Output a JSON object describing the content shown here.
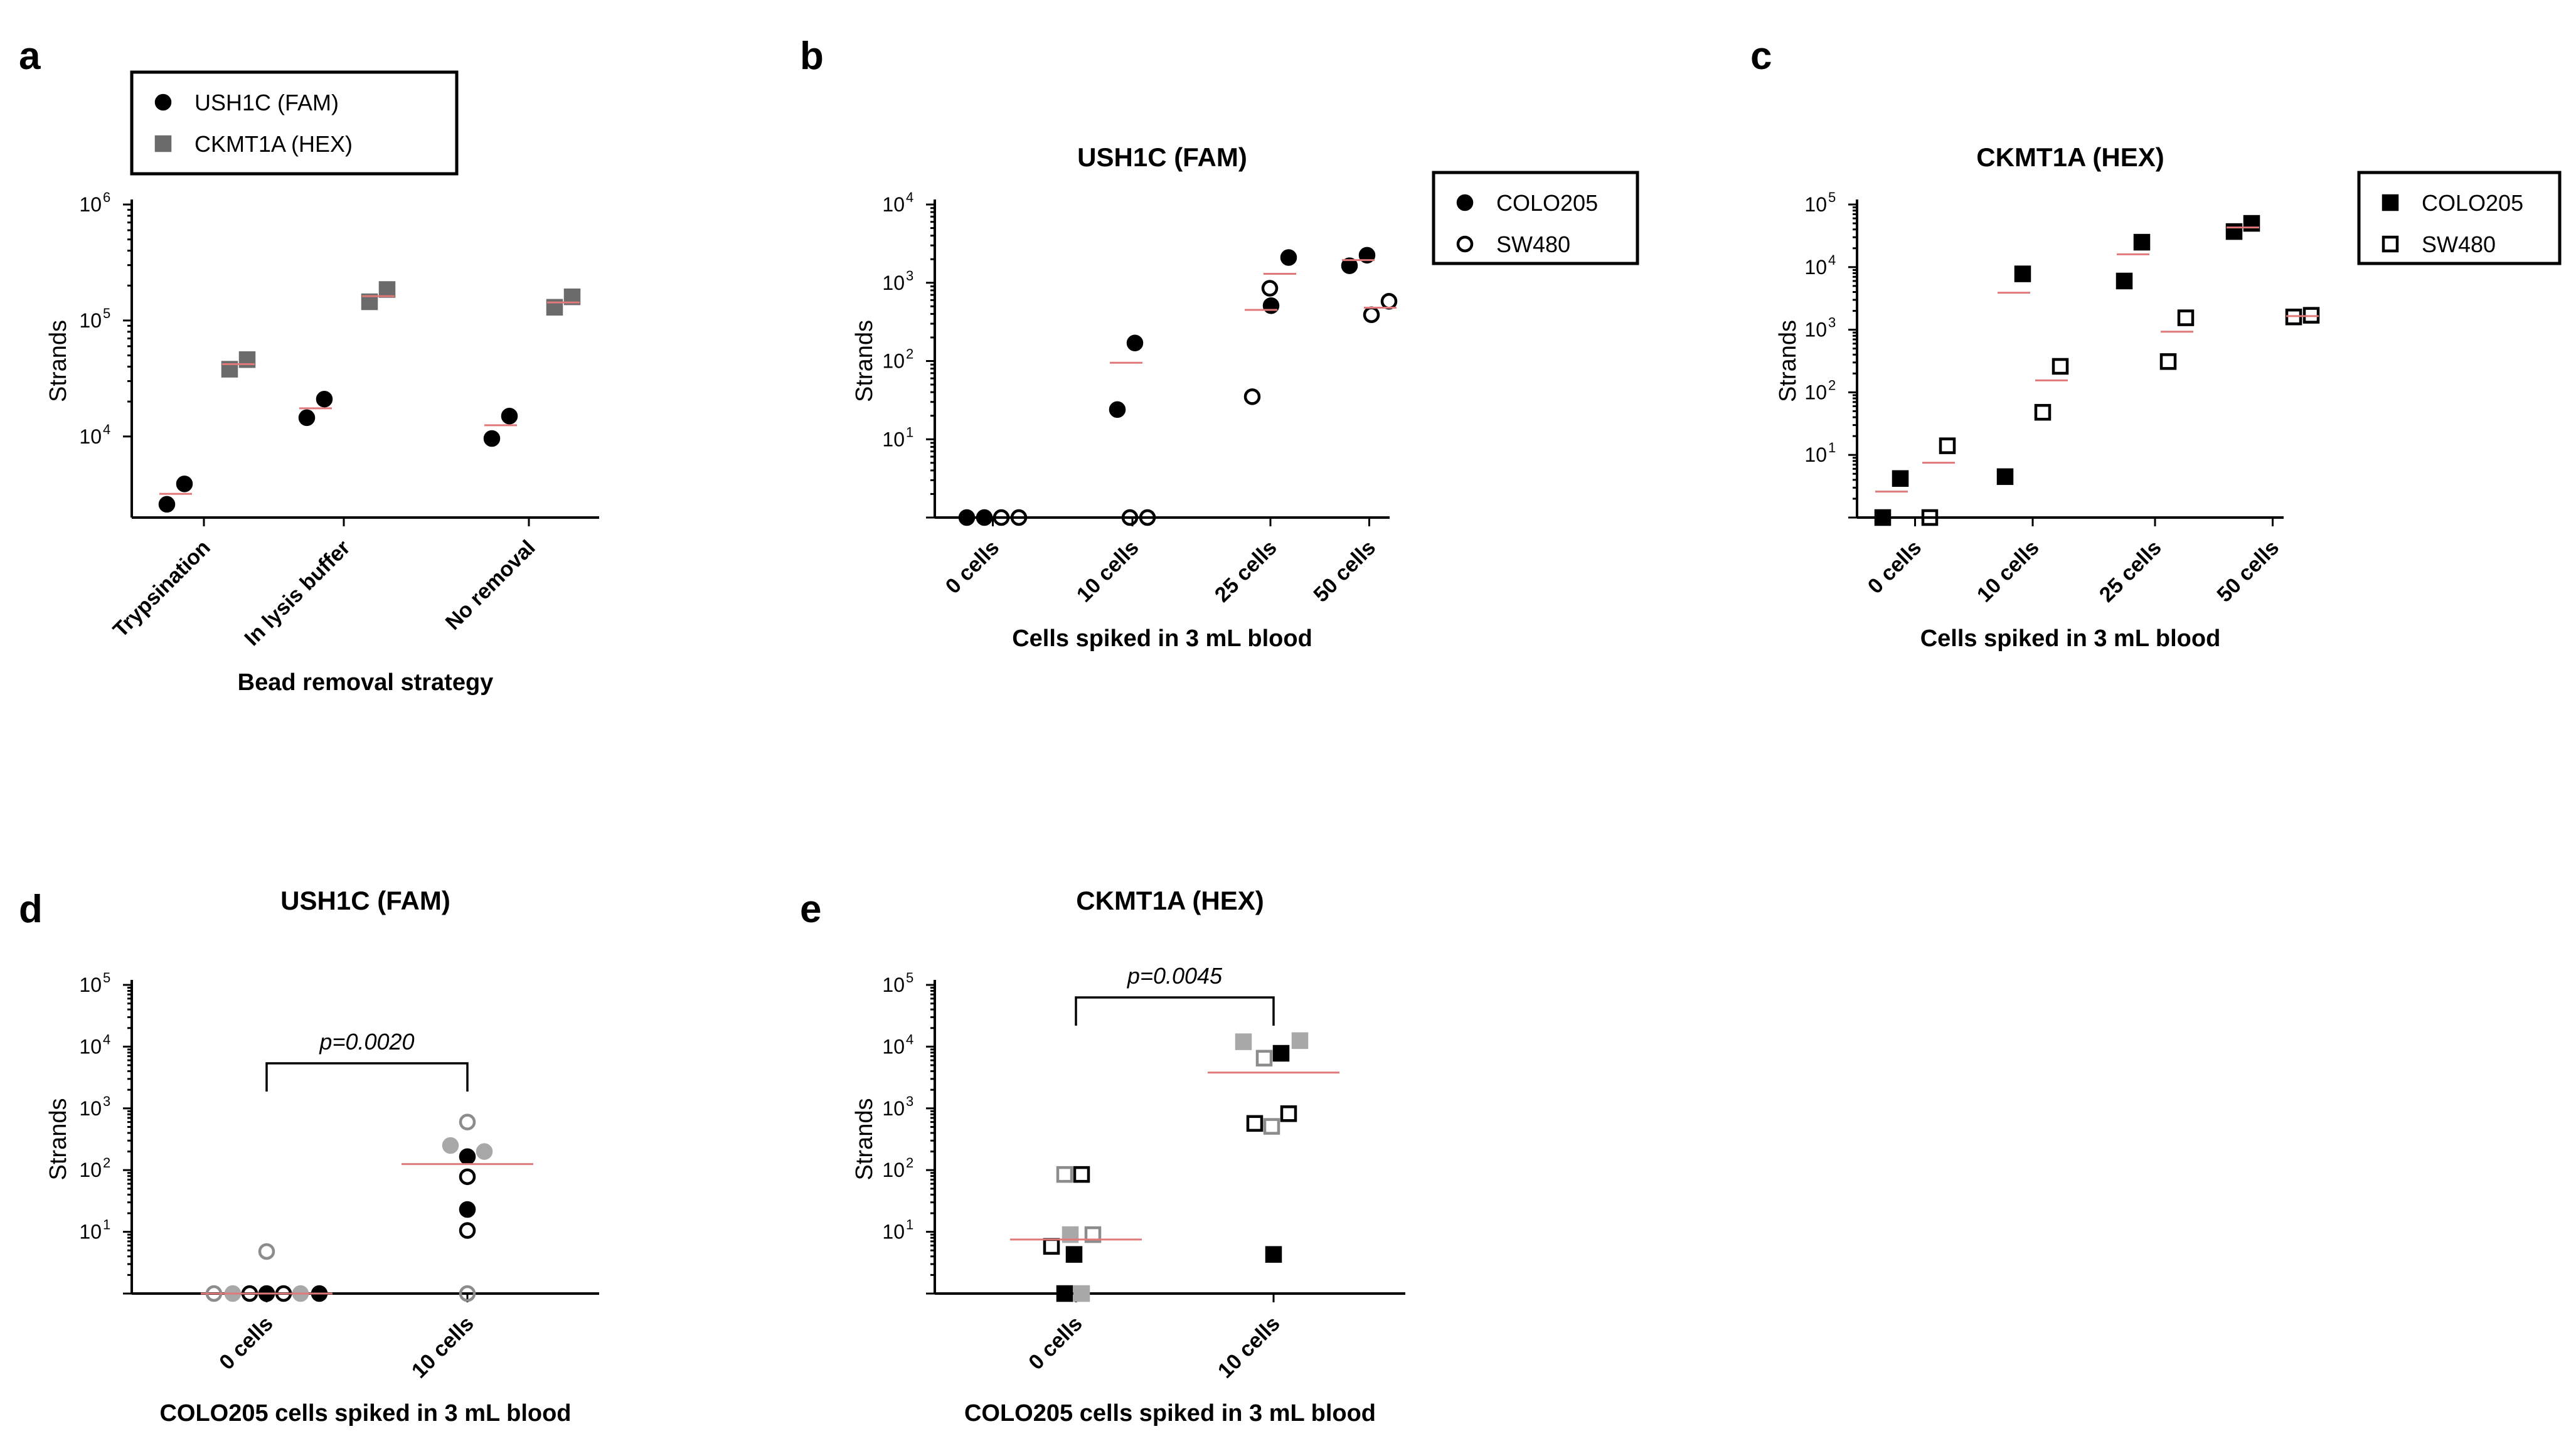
{
  "chart_data": [
    {
      "panel": "a",
      "type": "scatter",
      "title": "",
      "xlabel": "Bead removal strategy",
      "ylabel": "Strands",
      "yscale": "log",
      "ylim": [
        2000,
        1000000
      ],
      "yticks": [
        {
          "base": "10",
          "exp": "4"
        },
        {
          "base": "10",
          "exp": "5"
        },
        {
          "base": "10",
          "exp": "6"
        }
      ],
      "categories": [
        "Trypsination",
        "In lysis buffer",
        "No removal"
      ],
      "legend": {
        "position": "top",
        "entries": [
          "USH1C (FAM)",
          "CKMT1A (HEX)"
        ]
      },
      "series": [
        {
          "name": "USH1C (FAM)",
          "marker": "circle",
          "fill": "#000000",
          "values": [
            [
              2600,
              3900
            ],
            [
              14500,
              21000
            ],
            [
              9600,
              15000
            ]
          ],
          "medians": [
            3200,
            17500,
            12500
          ]
        },
        {
          "name": "CKMT1A (HEX)",
          "marker": "square",
          "fill": "#6b6b6b",
          "values": [
            [
              38000,
              46000
            ],
            [
              145000,
              185000
            ],
            [
              130000,
              160000
            ]
          ],
          "medians": [
            42000,
            162000,
            143000
          ]
        }
      ]
    },
    {
      "panel": "b",
      "type": "scatter",
      "title": "USH1C (FAM)",
      "xlabel": "Cells spiked in 3 mL blood",
      "ylabel": "Strands",
      "yscale": "log",
      "ylim": [
        1,
        10000
      ],
      "yticks": [
        {
          "base": "10",
          "exp": "1"
        },
        {
          "base": "10",
          "exp": "2"
        },
        {
          "base": "10",
          "exp": "3"
        },
        {
          "base": "10",
          "exp": "4"
        }
      ],
      "categories": [
        "0 cells",
        "10 cells",
        "25 cells",
        "50 cells"
      ],
      "legend": {
        "position": "right",
        "entries": [
          "COLO205",
          "SW480"
        ]
      },
      "series": [
        {
          "name": "COLO205",
          "marker": "circle",
          "fill": "#000000",
          "values": [
            [
              1,
              1
            ],
            [
              24,
              170
            ],
            [
              510,
              2100
            ],
            [
              1650,
              2250
            ]
          ],
          "medians": [
            null,
            95,
            1300,
            1950
          ]
        },
        {
          "name": "SW480",
          "marker": "circle",
          "fill": "none",
          "values": [
            [
              1,
              1
            ],
            [
              1,
              1
            ],
            [
              35,
              850
            ],
            [
              390,
              580
            ]
          ],
          "medians": [
            null,
            null,
            450,
            480
          ]
        }
      ]
    },
    {
      "panel": "c",
      "type": "scatter",
      "title": "CKMT1A (HEX)",
      "xlabel": "Cells spiked in 3 mL blood",
      "ylabel": "Strands",
      "yscale": "log",
      "ylim": [
        1,
        100000
      ],
      "yticks": [
        {
          "base": "10",
          "exp": "1"
        },
        {
          "base": "10",
          "exp": "2"
        },
        {
          "base": "10",
          "exp": "3"
        },
        {
          "base": "10",
          "exp": "4"
        },
        {
          "base": "10",
          "exp": "5"
        }
      ],
      "categories": [
        "0 cells",
        "10 cells",
        "25 cells",
        "50 cells"
      ],
      "legend": {
        "position": "right",
        "entries": [
          "COLO205",
          "SW480"
        ]
      },
      "series": [
        {
          "name": "COLO205",
          "marker": "square",
          "fill": "#000000",
          "values": [
            [
              1,
              4.2
            ],
            [
              4.5,
              7800
            ],
            [
              6000,
              25000
            ],
            [
              37000,
              50000
            ]
          ],
          "medians": [
            2.6,
            3900,
            16000,
            43000
          ]
        },
        {
          "name": "SW480",
          "marker": "square",
          "fill": "none",
          "values": [
            [
              1,
              14
            ],
            [
              48,
              260
            ],
            [
              310,
              1550
            ],
            [
              1600,
              1700
            ]
          ],
          "medians": [
            7.5,
            155,
            930,
            1650
          ]
        }
      ]
    },
    {
      "panel": "d",
      "type": "scatter",
      "title": "USH1C (FAM)",
      "xlabel": "COLO205 cells spiked in 3 mL blood",
      "ylabel": "Strands",
      "yscale": "log",
      "ylim": [
        1,
        100000
      ],
      "yticks": [
        {
          "base": "10",
          "exp": "1"
        },
        {
          "base": "10",
          "exp": "2"
        },
        {
          "base": "10",
          "exp": "3"
        },
        {
          "base": "10",
          "exp": "4"
        },
        {
          "base": "10",
          "exp": "5"
        }
      ],
      "categories": [
        "0 cells",
        "10 cells"
      ],
      "annotation": "p=0.0020",
      "medians": [
        1,
        125
      ],
      "points": [
        {
          "cat": 0,
          "offset": -0.28,
          "y": 1,
          "marker": "circle",
          "fill": "none",
          "stroke": "#8c8c8c"
        },
        {
          "cat": 0,
          "offset": -0.18,
          "y": 1,
          "marker": "circle",
          "fill": "#a8a8a8",
          "stroke": "#a8a8a8"
        },
        {
          "cat": 0,
          "offset": -0.09,
          "y": 1,
          "marker": "circle",
          "fill": "none",
          "stroke": "#000000"
        },
        {
          "cat": 0,
          "offset": 0.0,
          "y": 1,
          "marker": "circle",
          "fill": "#000000",
          "stroke": "#000000"
        },
        {
          "cat": 0,
          "offset": 0.09,
          "y": 1,
          "marker": "circle",
          "fill": "none",
          "stroke": "#000000"
        },
        {
          "cat": 0,
          "offset": 0.18,
          "y": 1,
          "marker": "circle",
          "fill": "#a8a8a8",
          "stroke": "#a8a8a8"
        },
        {
          "cat": 0,
          "offset": 0.28,
          "y": 1,
          "marker": "circle",
          "fill": "#000000",
          "stroke": "#000000"
        },
        {
          "cat": 0,
          "offset": 0.0,
          "y": 4.8,
          "marker": "circle",
          "fill": "none",
          "stroke": "#8c8c8c"
        },
        {
          "cat": 1,
          "offset": 0.0,
          "y": 600,
          "marker": "circle",
          "fill": "none",
          "stroke": "#8c8c8c"
        },
        {
          "cat": 1,
          "offset": -0.09,
          "y": 250,
          "marker": "circle",
          "fill": "#a8a8a8",
          "stroke": "#a8a8a8"
        },
        {
          "cat": 1,
          "offset": 0.09,
          "y": 200,
          "marker": "circle",
          "fill": "#a8a8a8",
          "stroke": "#a8a8a8"
        },
        {
          "cat": 1,
          "offset": 0.0,
          "y": 165,
          "marker": "circle",
          "fill": "#000000",
          "stroke": "#000000"
        },
        {
          "cat": 1,
          "offset": 0.0,
          "y": 78,
          "marker": "circle",
          "fill": "none",
          "stroke": "#000000"
        },
        {
          "cat": 1,
          "offset": 0.0,
          "y": 23,
          "marker": "circle",
          "fill": "#000000",
          "stroke": "#000000"
        },
        {
          "cat": 1,
          "offset": 0.0,
          "y": 10.5,
          "marker": "circle",
          "fill": "none",
          "stroke": "#000000"
        },
        {
          "cat": 1,
          "offset": 0.0,
          "y": 1,
          "marker": "circle",
          "fill": "none",
          "stroke": "#8c8c8c"
        }
      ]
    },
    {
      "panel": "e",
      "type": "scatter",
      "title": "CKMT1A (HEX)",
      "xlabel": "COLO205 cells spiked in 3 mL blood",
      "ylabel": "Strands",
      "yscale": "log",
      "ylim": [
        1,
        100000
      ],
      "yticks": [
        {
          "base": "10",
          "exp": "1"
        },
        {
          "base": "10",
          "exp": "2"
        },
        {
          "base": "10",
          "exp": "3"
        },
        {
          "base": "10",
          "exp": "4"
        },
        {
          "base": "10",
          "exp": "5"
        }
      ],
      "categories": [
        "0 cells",
        "10 cells"
      ],
      "annotation": "p=0.0045",
      "medians": [
        7.5,
        3800
      ],
      "points": [
        {
          "cat": 0,
          "offset": -0.06,
          "y": 85,
          "marker": "square",
          "fill": "none",
          "stroke": "#8c8c8c"
        },
        {
          "cat": 0,
          "offset": 0.03,
          "y": 85,
          "marker": "square",
          "fill": "none",
          "stroke": "#000000"
        },
        {
          "cat": 0,
          "offset": -0.03,
          "y": 9,
          "marker": "square",
          "fill": "#a8a8a8",
          "stroke": "#a8a8a8"
        },
        {
          "cat": 0,
          "offset": 0.09,
          "y": 9,
          "marker": "square",
          "fill": "none",
          "stroke": "#8c8c8c"
        },
        {
          "cat": 0,
          "offset": -0.13,
          "y": 5.8,
          "marker": "square",
          "fill": "none",
          "stroke": "#000000"
        },
        {
          "cat": 0,
          "offset": -0.01,
          "y": 4.3,
          "marker": "square",
          "fill": "#000000",
          "stroke": "#000000"
        },
        {
          "cat": 0,
          "offset": -0.06,
          "y": 1,
          "marker": "square",
          "fill": "#000000",
          "stroke": "#000000"
        },
        {
          "cat": 0,
          "offset": 0.03,
          "y": 1,
          "marker": "square",
          "fill": "#a8a8a8",
          "stroke": "#a8a8a8"
        },
        {
          "cat": 1,
          "offset": -0.16,
          "y": 12000,
          "marker": "square",
          "fill": "#a8a8a8",
          "stroke": "#a8a8a8"
        },
        {
          "cat": 1,
          "offset": 0.14,
          "y": 12500,
          "marker": "square",
          "fill": "#a8a8a8",
          "stroke": "#a8a8a8"
        },
        {
          "cat": 1,
          "offset": 0.04,
          "y": 7800,
          "marker": "square",
          "fill": "#000000",
          "stroke": "#000000"
        },
        {
          "cat": 1,
          "offset": -0.05,
          "y": 6500,
          "marker": "square",
          "fill": "none",
          "stroke": "#8c8c8c"
        },
        {
          "cat": 1,
          "offset": 0.08,
          "y": 820,
          "marker": "square",
          "fill": "none",
          "stroke": "#000000"
        },
        {
          "cat": 1,
          "offset": -0.1,
          "y": 570,
          "marker": "square",
          "fill": "none",
          "stroke": "#000000"
        },
        {
          "cat": 1,
          "offset": -0.01,
          "y": 510,
          "marker": "square",
          "fill": "none",
          "stroke": "#8c8c8c"
        },
        {
          "cat": 1,
          "offset": 0.0,
          "y": 4.3,
          "marker": "square",
          "fill": "#000000",
          "stroke": "#000000"
        }
      ]
    }
  ]
}
